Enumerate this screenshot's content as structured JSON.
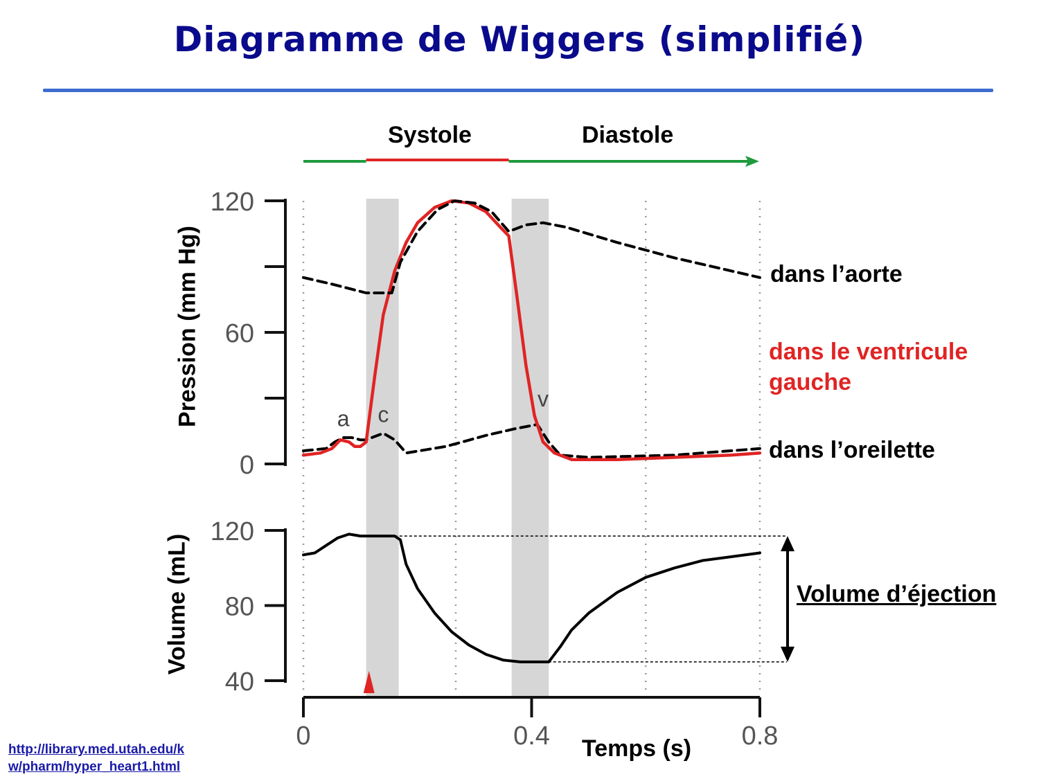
{
  "title": "Diagramme de Wiggers (simplifié)",
  "source_link": [
    "http://library.med.utah.edu/k",
    "w/pharm/hyper_heart1.html"
  ],
  "colors": {
    "title": "#0a0a8c",
    "rule": "#3d6ccf",
    "ventricle": "#e02424",
    "systole_bar": "#e02424",
    "diastole_bar": "#1f9a3e",
    "shade": "#d6d6d6"
  },
  "chart_data": [
    {
      "type": "line",
      "title": "",
      "xlabel": "",
      "ylabel": "Pression (mm Hg)",
      "xlim": [
        0,
        0.8
      ],
      "ylim": [
        0,
        120
      ],
      "y_ticks": [
        0,
        60,
        120
      ],
      "y_tick_marks": [
        0,
        30,
        60,
        90,
        120
      ],
      "phases": {
        "systole": "Systole",
        "diastole": "Diastole",
        "systole_span": [
          0.11,
          0.36
        ]
      },
      "shaded_intervals": [
        [
          0.11,
          0.167
        ],
        [
          0.365,
          0.43
        ]
      ],
      "gridlines_x": [
        0,
        0.267,
        0.6,
        0.8
      ],
      "series": [
        {
          "name": "dans l’aorte",
          "style": "dashed",
          "color": "#000000",
          "points": [
            [
              0,
              85
            ],
            [
              0.05,
              82
            ],
            [
              0.11,
              78
            ],
            [
              0.155,
              78
            ],
            [
              0.17,
              92
            ],
            [
              0.2,
              106
            ],
            [
              0.235,
              116
            ],
            [
              0.265,
              120
            ],
            [
              0.3,
              119
            ],
            [
              0.33,
              115
            ],
            [
              0.36,
              106
            ],
            [
              0.39,
              109
            ],
            [
              0.42,
              110
            ],
            [
              0.46,
              108
            ],
            [
              0.55,
              101
            ],
            [
              0.65,
              94
            ],
            [
              0.75,
              88
            ],
            [
              0.8,
              85
            ]
          ]
        },
        {
          "name": "dans le ventricule gauche",
          "style": "solid",
          "color": "#e02424",
          "points": [
            [
              0,
              4
            ],
            [
              0.03,
              5
            ],
            [
              0.05,
              7
            ],
            [
              0.065,
              11
            ],
            [
              0.08,
              10
            ],
            [
              0.09,
              8
            ],
            [
              0.1,
              8
            ],
            [
              0.11,
              10
            ],
            [
              0.125,
              40
            ],
            [
              0.14,
              68
            ],
            [
              0.16,
              88
            ],
            [
              0.18,
              101
            ],
            [
              0.2,
              110
            ],
            [
              0.23,
              117
            ],
            [
              0.26,
              120
            ],
            [
              0.29,
              119
            ],
            [
              0.32,
              115
            ],
            [
              0.345,
              108
            ],
            [
              0.36,
              104
            ],
            [
              0.375,
              75
            ],
            [
              0.39,
              45
            ],
            [
              0.405,
              22
            ],
            [
              0.42,
              10
            ],
            [
              0.44,
              5
            ],
            [
              0.47,
              2
            ],
            [
              0.55,
              2
            ],
            [
              0.65,
              3
            ],
            [
              0.75,
              4
            ],
            [
              0.8,
              5
            ]
          ]
        },
        {
          "name": "dans l’oreilette",
          "style": "dashed",
          "color": "#000000",
          "points": [
            [
              0,
              6
            ],
            [
              0.04,
              7
            ],
            [
              0.055,
              10
            ],
            [
              0.07,
              12
            ],
            [
              0.085,
              12
            ],
            [
              0.1,
              11
            ],
            [
              0.11,
              11
            ],
            [
              0.12,
              12
            ],
            [
              0.14,
              14
            ],
            [
              0.16,
              11
            ],
            [
              0.18,
              5
            ],
            [
              0.25,
              8
            ],
            [
              0.32,
              13
            ],
            [
              0.37,
              16
            ],
            [
              0.41,
              18
            ],
            [
              0.43,
              10
            ],
            [
              0.45,
              4
            ],
            [
              0.5,
              3
            ],
            [
              0.65,
              4
            ],
            [
              0.8,
              7
            ]
          ]
        }
      ],
      "annotations": [
        {
          "text": "a",
          "x": 0.07,
          "y": 14
        },
        {
          "text": "c",
          "x": 0.14,
          "y": 16
        },
        {
          "text": "v",
          "x": 0.42,
          "y": 23
        }
      ],
      "labels": [
        "dans l’aorte",
        "dans le ventricule gauche",
        "dans l’oreilette"
      ]
    },
    {
      "type": "line",
      "title": "",
      "xlabel": "Temps (s)",
      "ylabel": "Volume (mL)",
      "xlim": [
        0,
        0.8
      ],
      "ylim": [
        40,
        120
      ],
      "x_ticks": [
        0,
        0.4,
        0.8
      ],
      "x_tick_labels": [
        "0",
        "0.4",
        "0.8"
      ],
      "y_ticks": [
        40,
        80,
        120
      ],
      "y_tick_labels": [
        "40",
        "80",
        "120"
      ],
      "series": [
        {
          "name": "",
          "style": "solid",
          "color": "#000000",
          "points": [
            [
              0,
              107
            ],
            [
              0.02,
              108
            ],
            [
              0.04,
              112
            ],
            [
              0.06,
              116
            ],
            [
              0.08,
              118
            ],
            [
              0.1,
              117
            ],
            [
              0.16,
              117
            ],
            [
              0.17,
              115
            ],
            [
              0.18,
              102
            ],
            [
              0.2,
              89
            ],
            [
              0.23,
              76
            ],
            [
              0.26,
              66
            ],
            [
              0.29,
              59
            ],
            [
              0.32,
              54
            ],
            [
              0.35,
              51
            ],
            [
              0.38,
              50
            ],
            [
              0.43,
              50
            ],
            [
              0.45,
              58
            ],
            [
              0.47,
              67
            ],
            [
              0.5,
              76
            ],
            [
              0.55,
              87
            ],
            [
              0.6,
              95
            ],
            [
              0.65,
              100
            ],
            [
              0.7,
              104
            ],
            [
              0.75,
              106
            ],
            [
              0.8,
              108
            ]
          ]
        }
      ],
      "marker": {
        "x": 0.115,
        "y": 40,
        "shape": "triangle",
        "color": "#e02424"
      },
      "stroke_volume": {
        "label": "Volume d’éjection",
        "from": 50,
        "to": 117
      }
    }
  ]
}
